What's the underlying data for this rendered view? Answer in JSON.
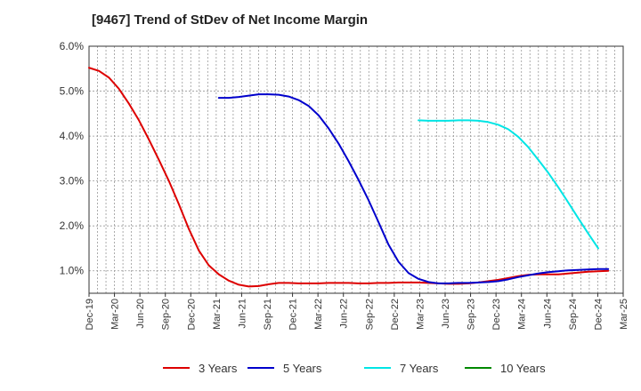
{
  "chart_data": {
    "type": "line",
    "title": "[9467]  Trend of StDev of Net Income Margin",
    "xlabel": "",
    "ylabel": "",
    "x_tick_labels": [
      "Dec-19",
      "Mar-20",
      "Jun-20",
      "Sep-20",
      "Dec-20",
      "Mar-21",
      "Jun-21",
      "Sep-21",
      "Dec-21",
      "Mar-22",
      "Jun-22",
      "Sep-22",
      "Dec-22",
      "Mar-23",
      "Jun-23",
      "Sep-23",
      "Dec-23",
      "Mar-24",
      "Jun-24",
      "Sep-24",
      "Dec-24",
      "Mar-25"
    ],
    "y_tick_labels": [
      "1.0%",
      "2.0%",
      "3.0%",
      "4.0%",
      "5.0%",
      "6.0%"
    ],
    "y_ticks": [
      1,
      2,
      3,
      4,
      5,
      6
    ],
    "ylim": [
      0.5,
      6.0
    ],
    "grid": true,
    "legend_position": "bottom",
    "series": [
      {
        "name": "3 Years",
        "color": "#dd0000",
        "values": [
          [
            0,
            5.52
          ],
          [
            1,
            5.45
          ],
          [
            2,
            5.3
          ],
          [
            3,
            5.05
          ],
          [
            4,
            4.72
          ],
          [
            5,
            4.35
          ],
          [
            6,
            3.92
          ],
          [
            7,
            3.47
          ],
          [
            8,
            3.0
          ],
          [
            9,
            2.48
          ],
          [
            10,
            1.93
          ],
          [
            11,
            1.45
          ],
          [
            12,
            1.12
          ],
          [
            13,
            0.92
          ],
          [
            14,
            0.78
          ],
          [
            15,
            0.69
          ],
          [
            16,
            0.65
          ],
          [
            17,
            0.66
          ],
          [
            18,
            0.7
          ],
          [
            19,
            0.73
          ],
          [
            20,
            0.73
          ],
          [
            21,
            0.72
          ],
          [
            22,
            0.72
          ],
          [
            23,
            0.72
          ],
          [
            24,
            0.73
          ],
          [
            25,
            0.73
          ],
          [
            26,
            0.73
          ],
          [
            27,
            0.72
          ],
          [
            28,
            0.72
          ],
          [
            29,
            0.73
          ],
          [
            30,
            0.73
          ],
          [
            31,
            0.74
          ],
          [
            32,
            0.74
          ],
          [
            33,
            0.74
          ],
          [
            34,
            0.73
          ],
          [
            35,
            0.72
          ],
          [
            36,
            0.71
          ],
          [
            37,
            0.71
          ],
          [
            38,
            0.72
          ],
          [
            39,
            0.74
          ],
          [
            40,
            0.77
          ],
          [
            41,
            0.8
          ],
          [
            42,
            0.84
          ],
          [
            43,
            0.88
          ],
          [
            44,
            0.91
          ],
          [
            45,
            0.92
          ],
          [
            46,
            0.92
          ],
          [
            47,
            0.92
          ],
          [
            48,
            0.94
          ],
          [
            49,
            0.96
          ],
          [
            50,
            0.98
          ],
          [
            51,
            0.99
          ],
          [
            52,
            1.0
          ]
        ]
      },
      {
        "name": "5 Years",
        "color": "#0000cc",
        "values": [
          [
            13,
            4.85
          ],
          [
            14,
            4.85
          ],
          [
            15,
            4.87
          ],
          [
            16,
            4.9
          ],
          [
            17,
            4.93
          ],
          [
            18,
            4.93
          ],
          [
            19,
            4.92
          ],
          [
            20,
            4.88
          ],
          [
            21,
            4.8
          ],
          [
            22,
            4.67
          ],
          [
            23,
            4.46
          ],
          [
            24,
            4.17
          ],
          [
            25,
            3.83
          ],
          [
            26,
            3.44
          ],
          [
            27,
            3.02
          ],
          [
            28,
            2.57
          ],
          [
            29,
            2.08
          ],
          [
            30,
            1.58
          ],
          [
            31,
            1.2
          ],
          [
            32,
            0.95
          ],
          [
            33,
            0.82
          ],
          [
            34,
            0.75
          ],
          [
            35,
            0.72
          ],
          [
            36,
            0.72
          ],
          [
            37,
            0.73
          ],
          [
            38,
            0.73
          ],
          [
            39,
            0.74
          ],
          [
            40,
            0.75
          ],
          [
            41,
            0.77
          ],
          [
            42,
            0.81
          ],
          [
            43,
            0.86
          ],
          [
            44,
            0.9
          ],
          [
            45,
            0.94
          ],
          [
            46,
            0.97
          ],
          [
            47,
            0.99
          ],
          [
            48,
            1.01
          ],
          [
            49,
            1.02
          ],
          [
            50,
            1.03
          ],
          [
            51,
            1.04
          ],
          [
            52,
            1.04
          ]
        ]
      },
      {
        "name": "7 Years",
        "color": "#00e5e5",
        "values": [
          [
            33,
            4.35
          ],
          [
            34,
            4.34
          ],
          [
            35,
            4.34
          ],
          [
            36,
            4.34
          ],
          [
            37,
            4.35
          ],
          [
            38,
            4.35
          ],
          [
            39,
            4.34
          ],
          [
            40,
            4.31
          ],
          [
            41,
            4.25
          ],
          [
            42,
            4.15
          ],
          [
            43,
            3.98
          ],
          [
            44,
            3.75
          ],
          [
            45,
            3.47
          ],
          [
            46,
            3.18
          ],
          [
            47,
            2.86
          ],
          [
            48,
            2.52
          ],
          [
            49,
            2.17
          ],
          [
            50,
            1.83
          ],
          [
            51,
            1.5
          ]
        ]
      },
      {
        "name": "10 Years",
        "color": "#008800",
        "values": []
      }
    ]
  }
}
